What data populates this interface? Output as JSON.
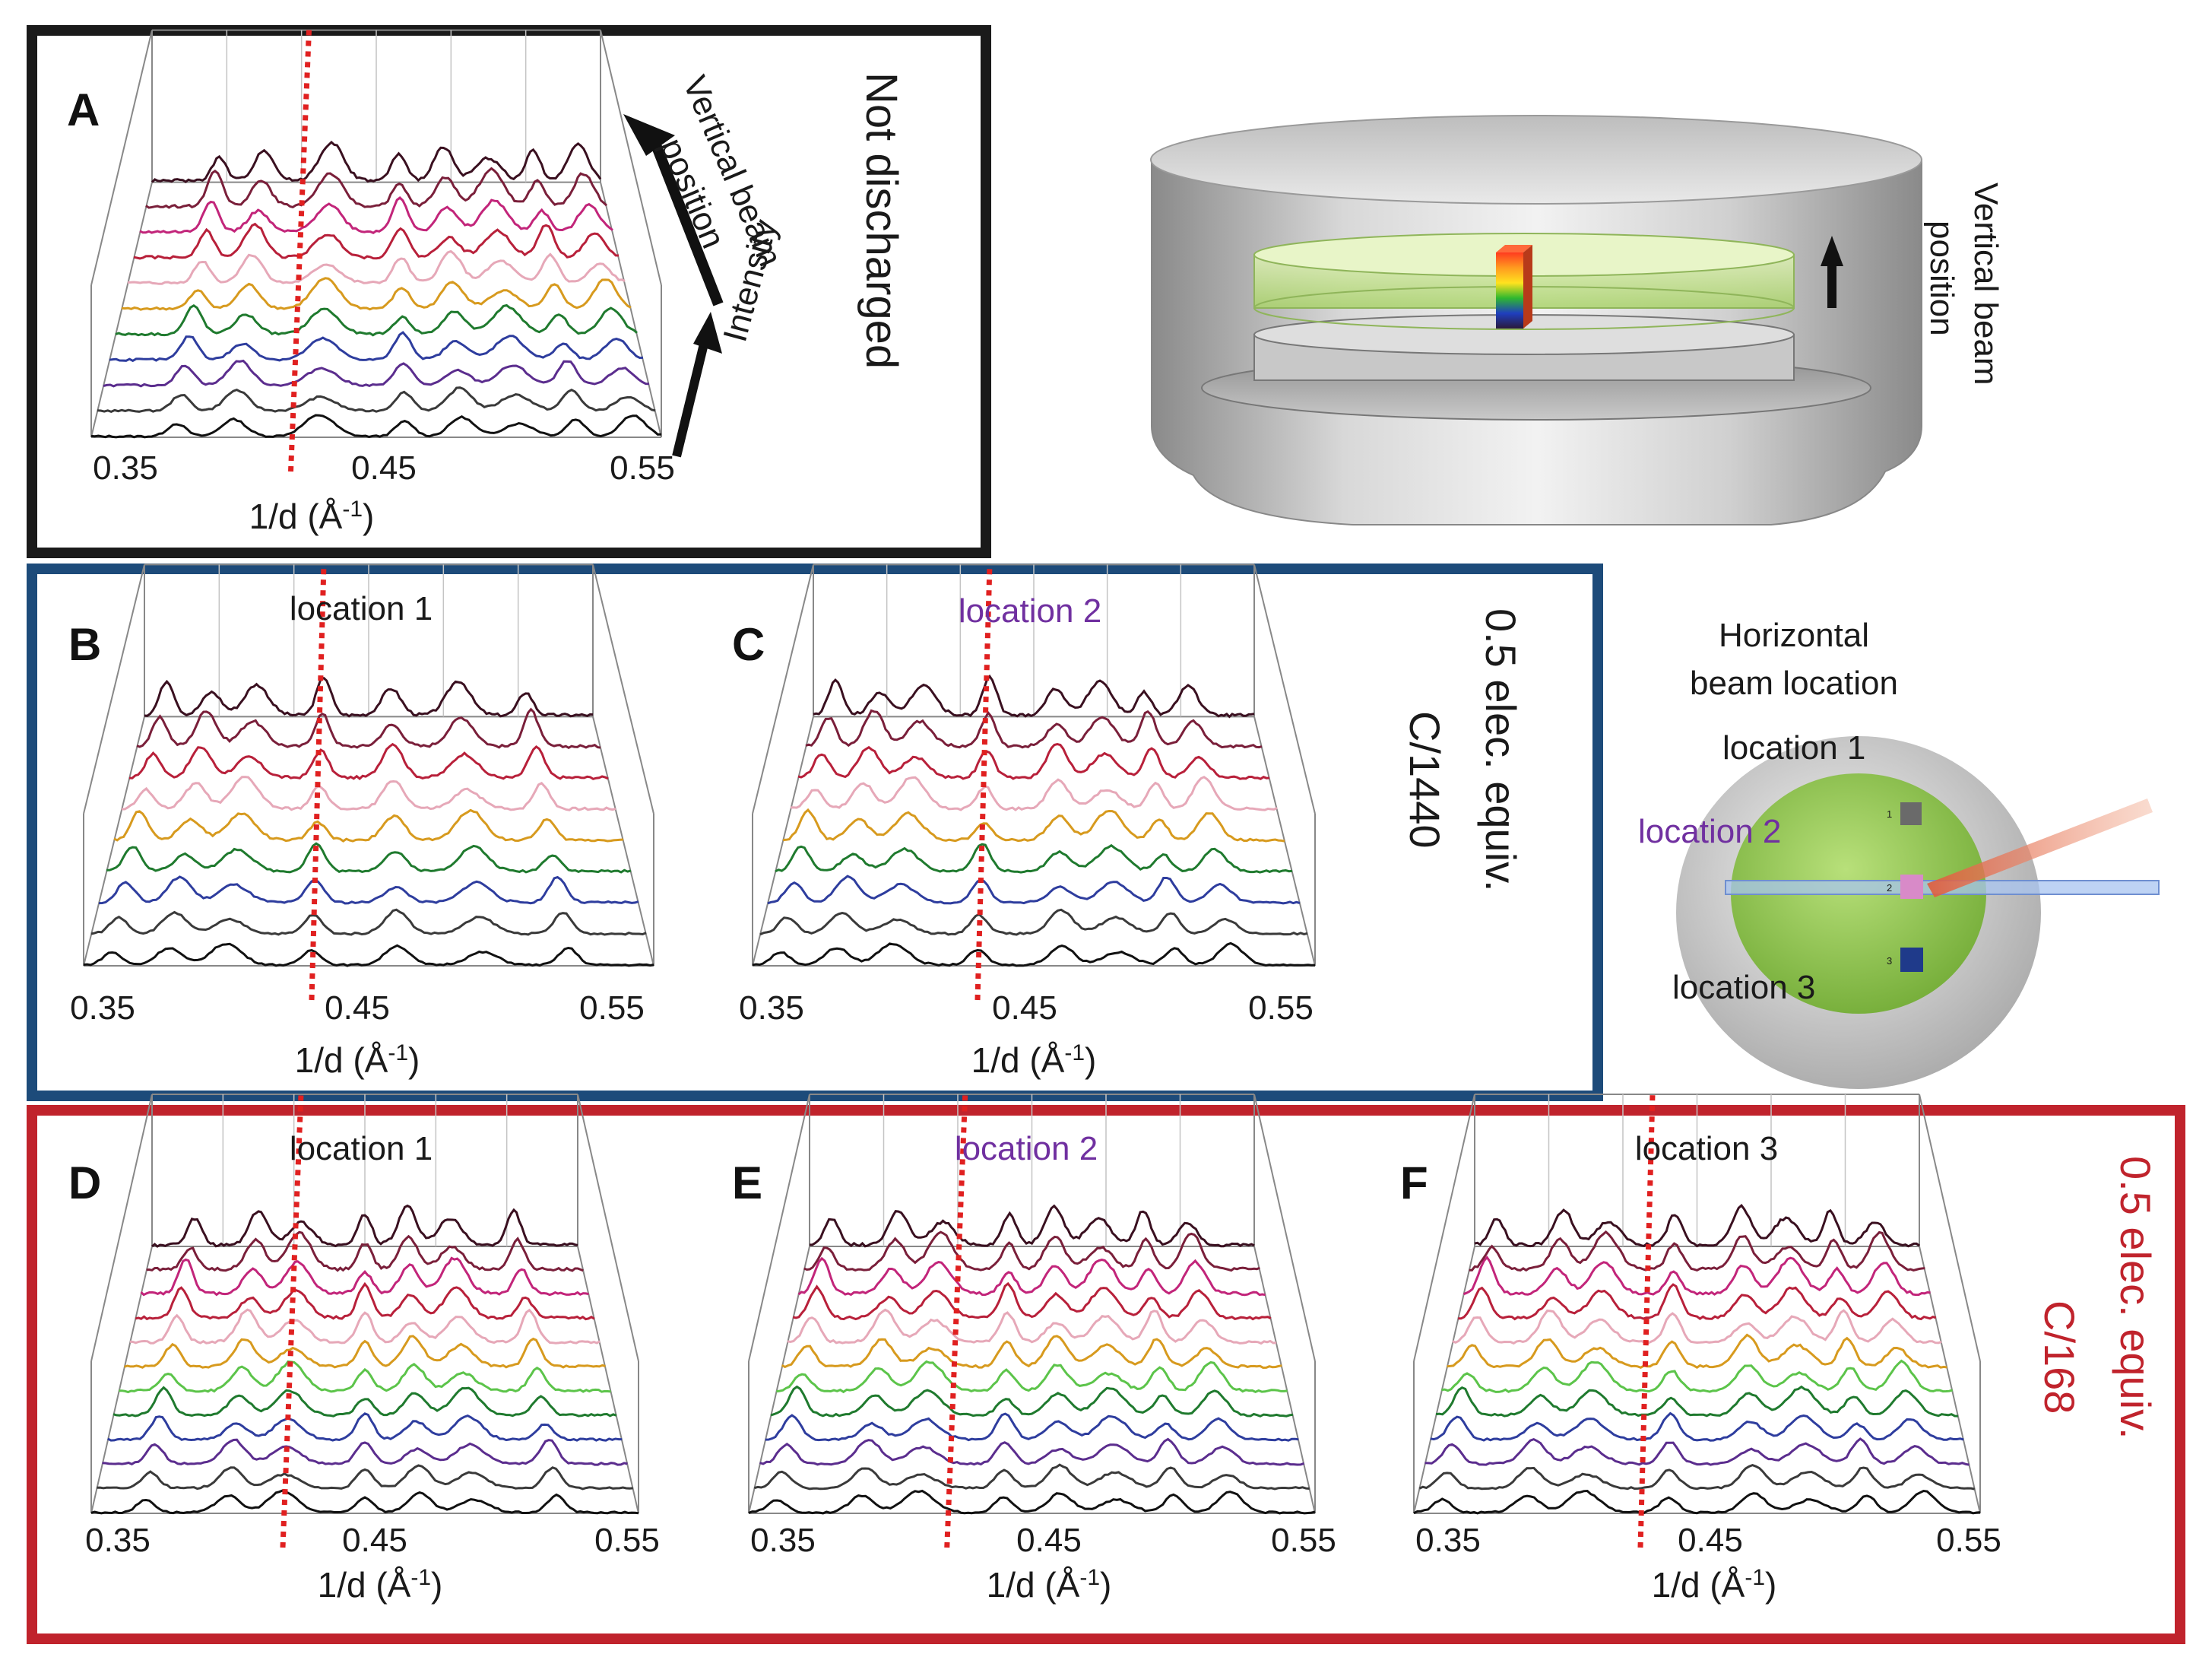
{
  "colors": {
    "frame_black": "#1a1a1a",
    "frame_blue": "#1d4b7a",
    "frame_red": "#c0232c",
    "purple_text": "#7030a0",
    "marker": "#e02020",
    "trace_sequence": [
      "#111111",
      "#3a3a3a",
      "#5b2d8e",
      "#2e3d9e",
      "#1f7a2e",
      "#5cc44a",
      "#d79a1e",
      "#e6a8b8",
      "#b8203a",
      "#c2257a",
      "#7a1f3a",
      "#3a1020"
    ]
  },
  "panels": [
    {
      "letter": "A",
      "title": "",
      "title_color": "",
      "xticks": [
        "0.35",
        "0.45",
        "0.55"
      ],
      "xlabel": "1/d (Å",
      "xlabel_sup": "-1",
      "xlabel_close": ")",
      "marker_x": 0.42,
      "n_traces": 11
    },
    {
      "letter": "B",
      "title": "location 1",
      "title_color": "#1a1a1a",
      "xticks": [
        "0.35",
        "0.45",
        "0.55"
      ],
      "xlabel": "1/d (Å",
      "xlabel_sup": "-1",
      "xlabel_close": ")",
      "marker_x": 0.43,
      "n_traces": 9
    },
    {
      "letter": "C",
      "title": "location 2",
      "title_color": "#7030a0",
      "xticks": [
        "0.35",
        "0.45",
        "0.55"
      ],
      "xlabel": "1/d (Å",
      "xlabel_sup": "-1",
      "xlabel_close": ")",
      "marker_x": 0.43,
      "n_traces": 9
    },
    {
      "letter": "D",
      "title": "location 1",
      "title_color": "#1a1a1a",
      "xticks": [
        "0.35",
        "0.45",
        "0.55"
      ],
      "xlabel": "1/d (Å",
      "xlabel_sup": "-1",
      "xlabel_close": ")",
      "marker_x": 0.42,
      "n_traces": 12
    },
    {
      "letter": "E",
      "title": "location 2",
      "title_color": "#7030a0",
      "xticks": [
        "0.35",
        "0.45",
        "0.55"
      ],
      "xlabel": "1/d (Å",
      "xlabel_sup": "-1",
      "xlabel_close": ")",
      "marker_x": 0.42,
      "n_traces": 12
    },
    {
      "letter": "F",
      "title": "location 3",
      "title_color": "#1a1a1a",
      "xticks": [
        "0.35",
        "0.45",
        "0.55"
      ],
      "xlabel": "1/d (Å",
      "xlabel_sup": "-1",
      "xlabel_close": ")",
      "marker_x": 0.43,
      "n_traces": 12
    }
  ],
  "labels": {
    "a_vertical_beam": "Vertical beam",
    "a_position": "position",
    "a_intensity": "Intensity",
    "a_not_discharged": "Not discharged",
    "cell_vertical_beam": "Vertical beam",
    "cell_position": "position",
    "horiz_title_1": "Horizontal",
    "horiz_title_2": "beam location",
    "horiz_loc1": "location 1",
    "horiz_loc2": "location 2",
    "horiz_loc3": "location 3",
    "horiz_marker_1": "1",
    "horiz_marker_2": "2",
    "horiz_marker_3": "3",
    "blue_side_1": "0.5 elec. equiv.",
    "blue_side_2": "C/1440",
    "red_side_1": "0.5 elec. equiv.",
    "red_side_2": "C/168"
  },
  "chart_data": [
    {
      "panel": "A",
      "type": "line",
      "subtype": "stacked waterfall",
      "xlabel": "1/d (Å-1)",
      "ylabel": "Intensity",
      "zlabel": "Vertical beam position",
      "xlim": [
        0.35,
        0.55
      ],
      "peaks": [
        0.38,
        0.4,
        0.43,
        0.46,
        0.48,
        0.5,
        0.52,
        0.54
      ],
      "marker": 0.42,
      "annotation": "Not discharged"
    },
    {
      "panel": "B",
      "type": "line",
      "subtype": "stacked waterfall",
      "title": "location 1",
      "xlabel": "1/d (Å-1)",
      "xlim": [
        0.35,
        0.55
      ],
      "peaks": [
        0.36,
        0.38,
        0.4,
        0.43,
        0.46,
        0.49,
        0.52
      ],
      "marker": 0.43
    },
    {
      "panel": "C",
      "type": "line",
      "subtype": "stacked waterfall",
      "title": "location 2",
      "xlabel": "1/d (Å-1)",
      "xlim": [
        0.35,
        0.55
      ],
      "peaks": [
        0.36,
        0.38,
        0.4,
        0.43,
        0.46,
        0.48,
        0.5,
        0.52
      ],
      "marker": 0.43
    },
    {
      "panel": "D",
      "type": "line",
      "subtype": "stacked waterfall",
      "title": "location 1",
      "xlabel": "1/d (Å-1)",
      "xlim": [
        0.35,
        0.55
      ],
      "peaks": [
        0.37,
        0.4,
        0.42,
        0.45,
        0.47,
        0.49,
        0.52
      ],
      "marker": 0.42
    },
    {
      "panel": "E",
      "type": "line",
      "subtype": "stacked waterfall",
      "title": "location 2",
      "xlabel": "1/d (Å-1)",
      "xlim": [
        0.35,
        0.55
      ],
      "peaks": [
        0.36,
        0.39,
        0.41,
        0.44,
        0.46,
        0.48,
        0.5,
        0.52
      ],
      "marker": 0.42
    },
    {
      "panel": "F",
      "type": "line",
      "subtype": "stacked waterfall",
      "title": "location 3",
      "xlabel": "1/d (Å-1)",
      "xlim": [
        0.35,
        0.55
      ],
      "peaks": [
        0.36,
        0.39,
        0.41,
        0.44,
        0.47,
        0.49,
        0.51,
        0.53
      ],
      "marker": 0.43
    }
  ]
}
